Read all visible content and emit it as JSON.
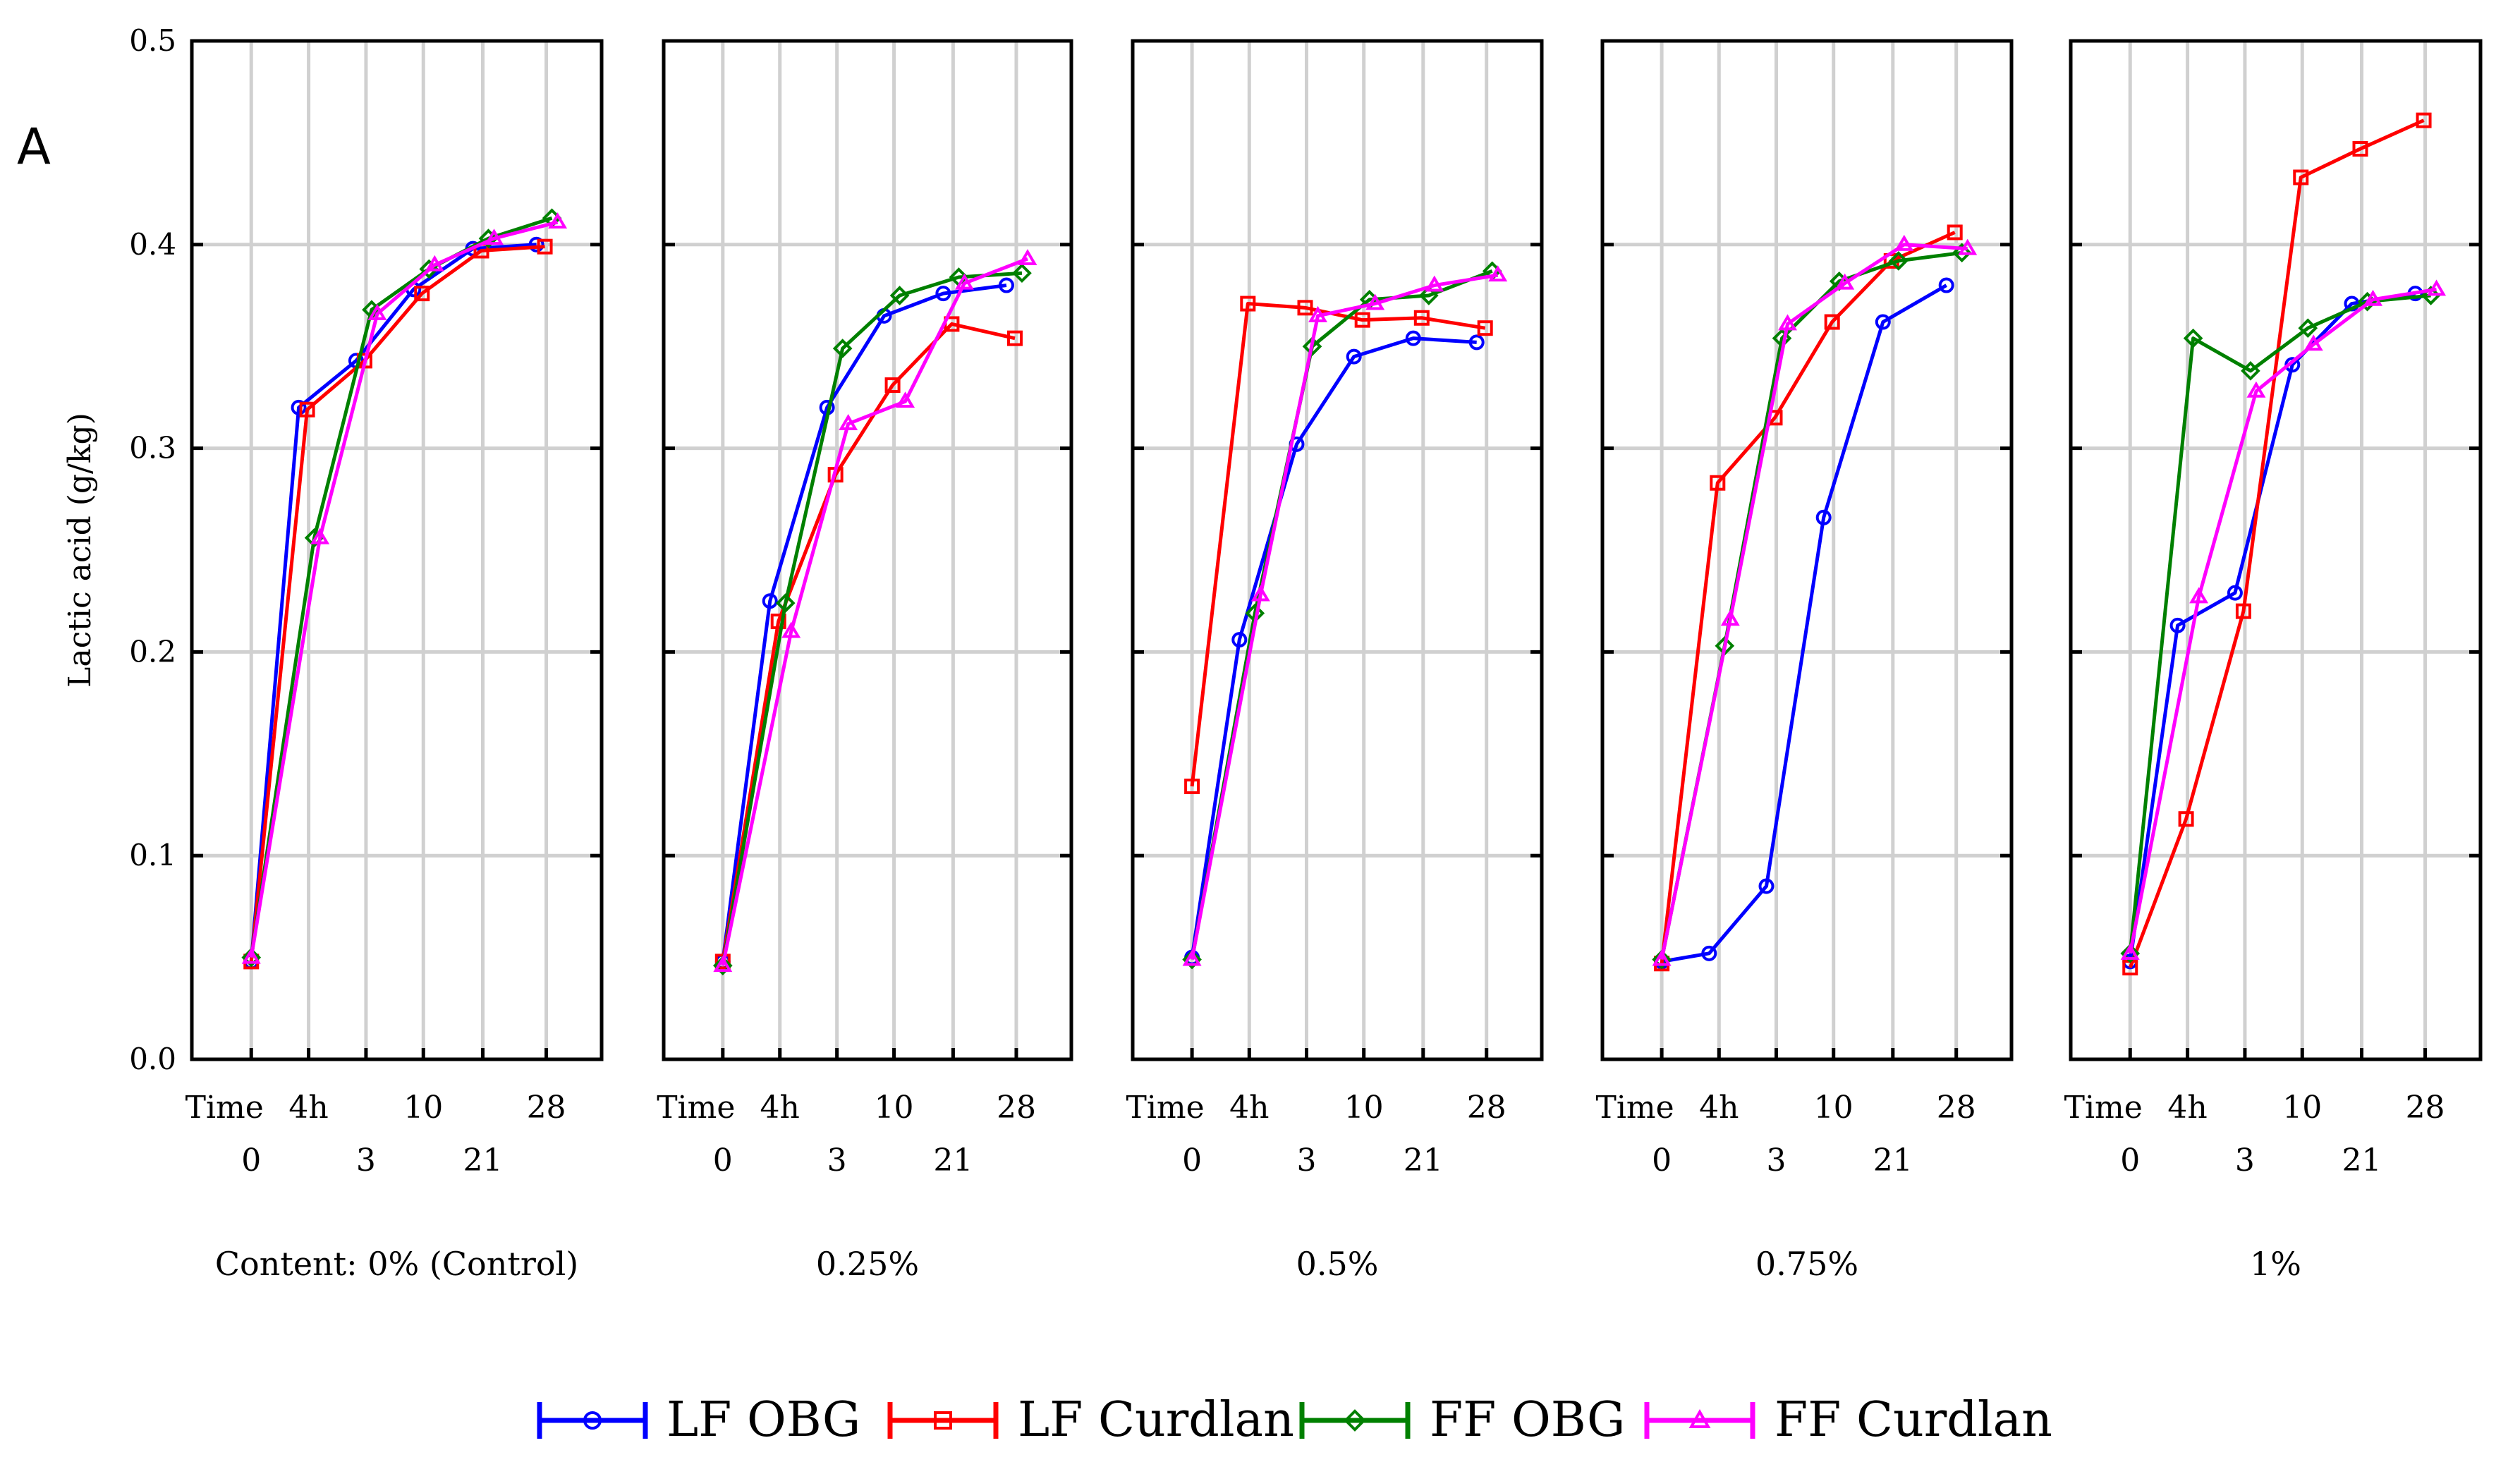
{
  "chart_data": {
    "type": "line",
    "panel_label": "A",
    "ylabel": "Lactic acid (g/kg)",
    "ylim": [
      0,
      0.5
    ],
    "y_ticks": [
      "0.0",
      "0.1",
      "0.2",
      "0.3",
      "0.4",
      "0.5"
    ],
    "x_title": "Time",
    "x_top_ticks": [
      "4h",
      "10",
      "28"
    ],
    "x_bottom_ticks": [
      "0",
      "3",
      "21"
    ],
    "x_categories": [
      "0",
      "4h",
      "3",
      "10",
      "21",
      "28"
    ],
    "facet_title_prefix": "Content: ",
    "facets": [
      {
        "label": "0% (Control)",
        "series": [
          {
            "name": "LF OBG",
            "values": [
              0.048,
              0.32,
              0.343,
              0.378,
              0.398,
              0.4
            ]
          },
          {
            "name": "LF Curdlan",
            "values": [
              0.048,
              0.319,
              0.343,
              0.376,
              0.397,
              0.399
            ]
          },
          {
            "name": "FF OBG",
            "values": [
              0.05,
              0.256,
              0.368,
              0.388,
              0.403,
              0.413
            ]
          },
          {
            "name": "FF Curdlan",
            "values": [
              0.05,
              0.256,
              0.366,
              0.39,
              0.403,
              0.411
            ]
          }
        ]
      },
      {
        "label": "0.25%",
        "series": [
          {
            "name": "LF OBG",
            "values": [
              0.048,
              0.225,
              0.32,
              0.365,
              0.376,
              0.38
            ]
          },
          {
            "name": "LF Curdlan",
            "values": [
              0.048,
              0.215,
              0.287,
              0.331,
              0.361,
              0.354
            ]
          },
          {
            "name": "FF OBG",
            "values": [
              0.046,
              0.224,
              0.349,
              0.375,
              0.384,
              0.386
            ]
          },
          {
            "name": "FF Curdlan",
            "values": [
              0.046,
              0.21,
              0.312,
              0.323,
              0.381,
              0.393
            ]
          }
        ]
      },
      {
        "label": "0.5%",
        "series": [
          {
            "name": "LF OBG",
            "values": [
              0.05,
              0.206,
              0.302,
              0.345,
              0.354,
              0.352
            ]
          },
          {
            "name": "LF Curdlan",
            "values": [
              0.134,
              0.371,
              0.369,
              0.363,
              0.364,
              0.359
            ]
          },
          {
            "name": "FF OBG",
            "values": [
              0.049,
              0.219,
              0.35,
              0.373,
              0.375,
              0.387
            ]
          },
          {
            "name": "FF Curdlan",
            "values": [
              0.049,
              0.228,
              0.365,
              0.371,
              0.38,
              0.385
            ]
          }
        ]
      },
      {
        "label": "0.75%",
        "series": [
          {
            "name": "LF OBG",
            "values": [
              0.048,
              0.052,
              0.085,
              0.266,
              0.362,
              0.38
            ]
          },
          {
            "name": "LF Curdlan",
            "values": [
              0.047,
              0.283,
              0.315,
              0.362,
              0.392,
              0.406
            ]
          },
          {
            "name": "FF OBG",
            "values": [
              0.049,
              0.203,
              0.354,
              0.382,
              0.392,
              0.396
            ]
          },
          {
            "name": "FF Curdlan",
            "values": [
              0.049,
              0.216,
              0.361,
              0.381,
              0.4,
              0.398
            ]
          }
        ]
      },
      {
        "label": "1%",
        "series": [
          {
            "name": "LF OBG",
            "values": [
              0.048,
              0.213,
              0.229,
              0.341,
              0.371,
              0.376
            ]
          },
          {
            "name": "LF Curdlan",
            "values": [
              0.045,
              0.118,
              0.22,
              0.433,
              0.447,
              0.461
            ]
          },
          {
            "name": "FF OBG",
            "values": [
              0.052,
              0.354,
              0.338,
              0.359,
              0.372,
              0.375
            ]
          },
          {
            "name": "FF Curdlan",
            "values": [
              0.052,
              0.227,
              0.328,
              0.351,
              0.373,
              0.378
            ]
          }
        ]
      }
    ],
    "legend": [
      {
        "name": "LF OBG",
        "color": "#0000ff",
        "marker": "circle"
      },
      {
        "name": "LF Curdlan",
        "color": "#ff0000",
        "marker": "square"
      },
      {
        "name": "FF OBG",
        "color": "#008000",
        "marker": "diamond"
      },
      {
        "name": "FF Curdlan",
        "color": "#ff00ff",
        "marker": "triangle"
      }
    ],
    "legend_position": "bottom-center",
    "grid": true
  }
}
